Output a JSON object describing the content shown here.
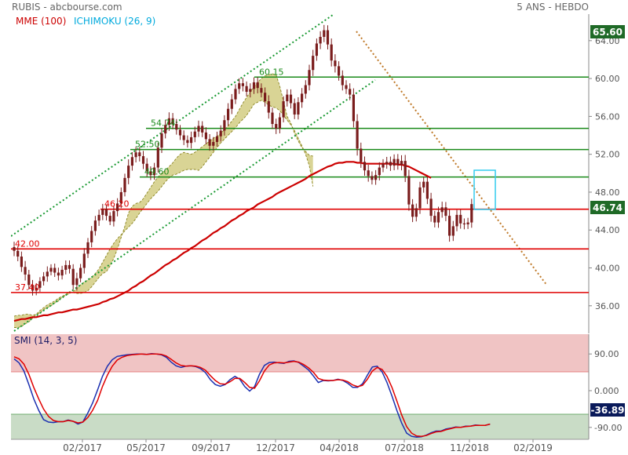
{
  "header": {
    "symbol": "RUBIS - abcbourse.com",
    "period": "5 ANS - HEBDO",
    "legend_mme": "MME (100)",
    "legend_ichimoku": "ICHIMOKU (26, 9)",
    "smi_label": "SMI (14, 3, 5)"
  },
  "colors": {
    "candle": "#7a1c1c",
    "mme": "#cc0000",
    "ichimoku_legend": "#00aadd",
    "cloud_fill": "#d2cd82",
    "cloud_edge": "#8a8420",
    "trend_green": "#1a9a33",
    "trend_orange": "#c07a2a",
    "support": "#e00000",
    "resistance": "#1a8a1a",
    "smi_blue": "#1b2fb0",
    "smi_red": "#e00000",
    "smi_overbought": "#f0c4c4",
    "smi_oversold": "#c9dcc6",
    "price_tag": "#1f6a27",
    "current_tag": "#1f6a27",
    "smi_tag": "#0a1a5a",
    "highlight_box": "#33ccee"
  },
  "chart_data": [
    {
      "type": "candlestick",
      "title": "RUBIS - abcbourse.com",
      "timeframe": "5 ANS - HEBDO",
      "x_ticks": [
        "02/2017",
        "05/2017",
        "09/2017",
        "12/2017",
        "04/2018",
        "07/2018",
        "11/2018",
        "02/2019"
      ],
      "y_ticks": [
        "64.00",
        "60.00",
        "56.00",
        "52.00",
        "48.00",
        "44.00",
        "40.00",
        "36.00"
      ],
      "ylim": [
        34.5,
        66.5
      ],
      "price_tags": {
        "high": "65.60",
        "last": "46.74"
      },
      "levels_red": [
        {
          "value": 46.2,
          "label": "46.20"
        },
        {
          "value": 42.0,
          "label": "42.00"
        },
        {
          "value": 37.4,
          "label": "37.40"
        }
      ],
      "levels_green": [
        {
          "value": 60.15,
          "label": "60.15"
        },
        {
          "value": 54.74,
          "label": "54.74"
        },
        {
          "value": 52.5,
          "label": "52.50"
        },
        {
          "value": 49.6,
          "label": "49.60"
        }
      ],
      "weekly_close": [
        41.8,
        41.2,
        40.1,
        39.3,
        38.2,
        37.6,
        37.9,
        38.6,
        39.1,
        39.6,
        40.0,
        39.5,
        39.2,
        39.8,
        40.3,
        39.9,
        38.2,
        38.9,
        40.0,
        41.5,
        42.7,
        43.9,
        45.0,
        45.6,
        46.2,
        45.5,
        44.9,
        46.0,
        46.8,
        48.0,
        49.5,
        50.8,
        51.7,
        52.2,
        51.8,
        51.0,
        50.2,
        49.8,
        50.6,
        52.7,
        54.2,
        55.1,
        55.8,
        55.2,
        54.6,
        54.0,
        53.5,
        53.2,
        53.8,
        54.4,
        55.0,
        54.3,
        53.6,
        52.9,
        53.3,
        53.9,
        54.5,
        55.6,
        56.8,
        57.8,
        58.9,
        59.5,
        59.2,
        58.6,
        58.9,
        59.6,
        59.0,
        58.5,
        57.6,
        56.4,
        55.2,
        54.7,
        55.9,
        57.6,
        58.3,
        57.4,
        56.2,
        57.5,
        58.4,
        59.3,
        60.9,
        62.4,
        63.7,
        64.4,
        65.1,
        63.6,
        61.9,
        61.3,
        60.3,
        59.3,
        58.9,
        58.3,
        55.5,
        52.6,
        51.2,
        50.3,
        49.7,
        49.3,
        49.8,
        50.6,
        51.0,
        51.2,
        50.8,
        51.5,
        50.9,
        51.3,
        49.7,
        46.7,
        45.4,
        46.3,
        48.5,
        49.1,
        47.3,
        45.5,
        44.8,
        45.9,
        46.4,
        45.5,
        43.4,
        44.4,
        45.6,
        44.7,
        44.6,
        44.8,
        46.74
      ],
      "weekly_range": [
        1.6,
        1.4,
        1.5,
        1.8,
        1.4,
        1.5,
        1.4,
        1.2,
        1.3,
        1.6,
        1.1,
        1.3,
        1.5,
        1.2,
        1.4,
        1.4,
        1.4,
        1.7,
        1.2,
        1.7,
        1.3,
        1.5,
        1.4,
        1.6,
        1.6,
        1.4,
        1.1,
        1.5,
        1.6,
        1.4,
        1.3,
        1.9,
        1.5,
        1.6,
        1.6,
        1.6,
        1.7,
        1.5,
        1.4,
        1.5,
        1.6,
        1.5,
        1.8,
        1.6,
        1.5,
        1.4,
        1.5,
        1.4,
        1.7,
        1.5,
        1.6,
        1.4,
        1.6,
        1.5,
        1.5,
        1.4,
        1.6,
        1.5,
        1.7,
        1.6,
        1.4,
        1.5,
        1.6,
        1.4,
        1.7,
        1.5,
        1.6,
        1.4,
        1.6,
        1.8,
        1.5,
        1.6,
        1.4,
        1.5,
        1.6,
        1.6,
        1.4,
        1.5,
        1.7,
        1.5,
        1.6,
        1.8,
        1.5,
        1.7,
        1.6,
        1.5,
        1.8,
        1.9,
        1.5,
        1.6,
        1.5,
        1.7,
        1.9,
        2.1,
        1.8,
        1.6,
        1.7,
        1.4,
        1.5,
        1.6,
        1.4,
        1.5,
        1.6,
        1.4,
        1.5,
        1.7,
        1.8,
        1.9,
        1.6,
        1.4,
        1.7,
        1.6,
        1.6,
        1.8,
        1.5,
        1.6,
        1.7,
        1.6,
        1.8,
        1.6,
        1.5,
        1.6,
        1.5,
        1.4,
        1.6
      ],
      "mme_100": [
        34.4,
        34.5,
        34.6,
        34.6,
        34.7,
        34.8,
        34.8,
        34.9,
        35.0,
        35.0,
        35.1,
        35.2,
        35.3,
        35.3,
        35.4,
        35.5,
        35.6,
        35.6,
        35.7,
        35.8,
        35.9,
        36.0,
        36.1,
        36.2,
        36.4,
        36.5,
        36.7,
        36.8,
        37.0,
        37.2,
        37.4,
        37.6,
        37.9,
        38.1,
        38.4,
        38.6,
        38.9,
        39.2,
        39.4,
        39.7,
        40.0,
        40.3,
        40.5,
        40.8,
        41.0,
        41.3,
        41.6,
        41.8,
        42.1,
        42.3,
        42.6,
        42.9,
        43.1,
        43.4,
        43.7,
        43.9,
        44.2,
        44.4,
        44.7,
        45.0,
        45.2,
        45.5,
        45.7,
        46.0,
        46.2,
        46.4,
        46.7,
        46.9,
        47.1,
        47.3,
        47.5,
        47.8,
        48.0,
        48.2,
        48.4,
        48.6,
        48.8,
        49.0,
        49.2,
        49.4,
        49.7,
        49.9,
        50.1,
        50.3,
        50.5,
        50.7,
        50.8,
        51.0,
        51.1,
        51.1,
        51.2,
        51.2,
        51.2,
        51.1,
        51.1,
        51.0,
        51.0,
        51.0,
        51.0,
        51.0,
        51.0,
        51.0,
        51.0,
        51.0,
        50.9,
        50.9,
        50.8,
        50.7,
        50.5,
        50.3,
        50.1,
        49.9,
        49.7,
        49.5
      ],
      "ichimoku": {
        "span_a": [
          33.7,
          33.7,
          33.8,
          34.1,
          34.3,
          34.7,
          35.1,
          35.5,
          35.8,
          36.1,
          36.3,
          36.5,
          36.8,
          37.0,
          37.2,
          37.5,
          37.4,
          37.3,
          37.3,
          37.4,
          37.6,
          38.0,
          38.5,
          39.0,
          39.4,
          39.6,
          40.2,
          41.0,
          42.0,
          43.2,
          44.4,
          45.8,
          46.5,
          46.8,
          46.9,
          47.3,
          47.9,
          48.5,
          49.1,
          49.6,
          50.0,
          50.3,
          50.7,
          51.1,
          51.6,
          52.0,
          52.2,
          52.1,
          52.0,
          52.2,
          52.5,
          52.8,
          53.1,
          53.4,
          53.7,
          53.9,
          54.2,
          54.6,
          55.0,
          55.5,
          56.0,
          56.7,
          57.4,
          58.0,
          58.6,
          59.1,
          59.6,
          60.0,
          60.3,
          60.4,
          60.5,
          60.4,
          59.2,
          57.6,
          56.0,
          55.3,
          54.2,
          53.4,
          52.7,
          52.3,
          51.9,
          51.8
        ],
        "span_b": [
          34.9,
          35.0,
          35.0,
          35.1,
          35.1,
          35.0,
          35.1,
          35.2,
          35.6,
          35.8,
          36.0,
          36.3,
          36.5,
          36.9,
          37.1,
          37.3,
          37.5,
          37.8,
          38.2,
          38.5,
          38.7,
          39.0,
          39.4,
          39.9,
          40.6,
          41.3,
          42.0,
          42.6,
          43.1,
          43.5,
          43.9,
          44.3,
          44.7,
          45.2,
          45.8,
          46.3,
          46.8,
          47.3,
          47.7,
          48.1,
          48.6,
          49.1,
          49.5,
          49.8,
          49.9,
          50.1,
          50.3,
          50.4,
          50.4,
          50.4,
          50.3,
          50.7,
          51.2,
          51.7,
          52.2,
          52.7,
          53.2,
          53.6,
          54.0,
          54.4,
          54.8,
          55.3,
          55.7,
          56.1,
          56.7,
          57.3,
          57.5,
          57.7,
          57.5,
          57.2,
          57.0,
          56.9,
          56.6,
          56.1,
          55.6,
          55.1,
          54.5,
          53.7,
          52.9,
          52.0,
          50.8,
          48.6
        ]
      }
    },
    {
      "type": "line",
      "title": "SMI (14, 3, 5)",
      "y_ticks": [
        "90.00",
        "0.000",
        "-90.00"
      ],
      "ylim": [
        -128,
        128
      ],
      "last_value": "-36.89",
      "overbought": 40,
      "oversold": -40,
      "series": [
        {
          "values": [
            78,
            68,
            48,
            15,
            -20,
            -48,
            -71,
            -77,
            -78,
            -76,
            -76,
            -72,
            -75,
            -82,
            -77,
            -55,
            -30,
            2,
            35,
            60,
            76,
            84,
            86,
            88,
            89,
            90,
            90,
            89,
            91,
            90,
            88,
            82,
            70,
            61,
            57,
            60,
            61,
            59,
            54,
            44,
            27,
            15,
            11,
            15,
            27,
            35,
            28,
            10,
            -1,
            10,
            40,
            62,
            69,
            70,
            68,
            67,
            72,
            73,
            69,
            60,
            51,
            36,
            20,
            25,
            24,
            25,
            28,
            25,
            18,
            8,
            8,
            17,
            38,
            58,
            60,
            46,
            20,
            -13,
            -48,
            -80,
            -104,
            -112,
            -114,
            -113,
            -109,
            -103,
            -99,
            -99,
            -94,
            -92,
            -89,
            -90,
            -87,
            -87,
            -84,
            -85,
            -85,
            -82
          ]
        },
        {
          "values": [
            83,
            78,
            65,
            40,
            8,
            -20,
            -45,
            -63,
            -73,
            -76,
            -76,
            -73,
            -75,
            -79,
            -77,
            -66,
            -48,
            -24,
            10,
            38,
            60,
            75,
            82,
            86,
            88,
            89,
            90,
            89,
            90,
            90,
            89,
            85,
            77,
            68,
            62,
            60,
            61,
            60,
            57,
            50,
            37,
            25,
            17,
            16,
            22,
            30,
            30,
            20,
            8,
            6,
            24,
            48,
            63,
            68,
            69,
            68,
            70,
            72,
            70,
            64,
            56,
            45,
            30,
            26,
            25,
            25,
            27,
            26,
            22,
            14,
            10,
            13,
            28,
            48,
            57,
            52,
            35,
            8,
            -25,
            -60,
            -88,
            -104,
            -111,
            -112,
            -110,
            -105,
            -101,
            -100,
            -96,
            -93,
            -90,
            -90,
            -88,
            -87,
            -85,
            -85,
            -85,
            -82
          ]
        }
      ]
    }
  ]
}
